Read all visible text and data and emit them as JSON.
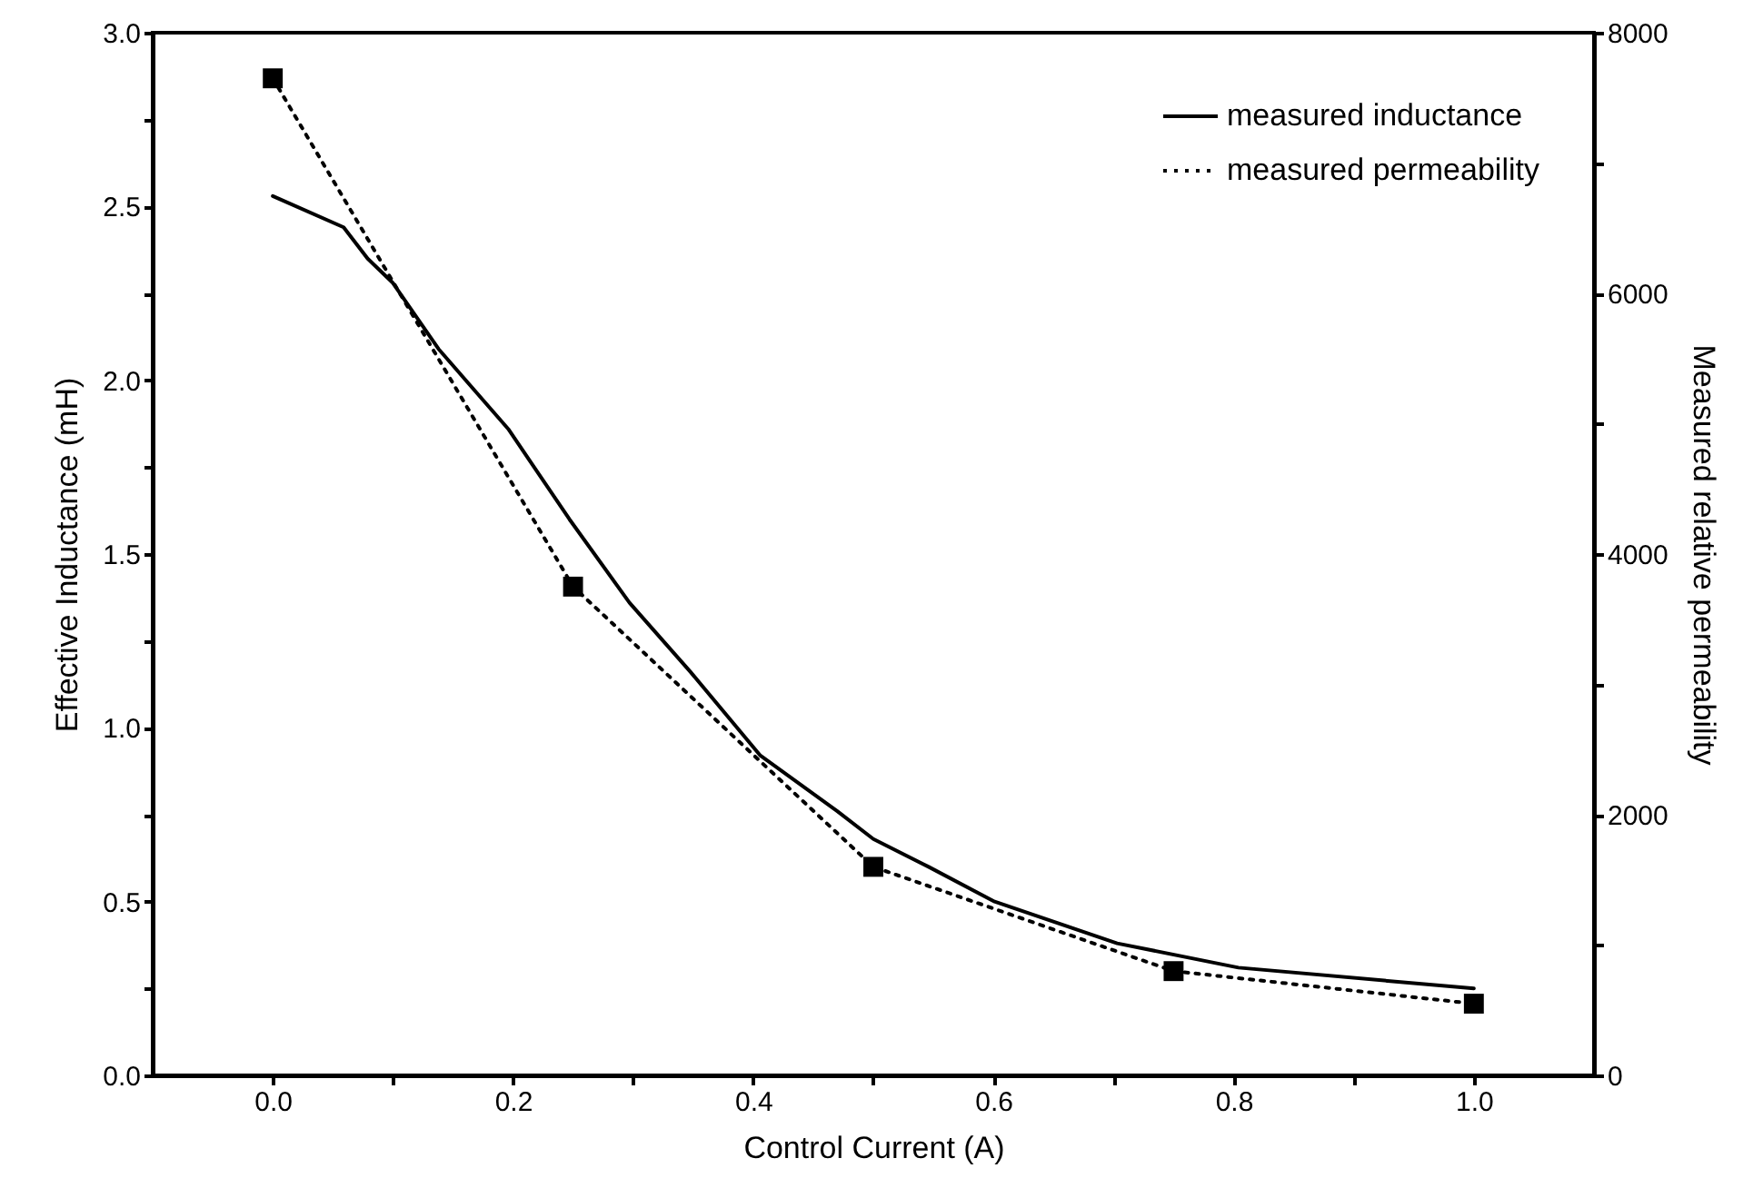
{
  "chart_data": {
    "type": "line",
    "xlabel": "Control Current (A)",
    "ylabel": "Effective Inductance (mH)",
    "y2label": "Measured relative permeability",
    "xlim": [
      -0.1,
      1.1
    ],
    "xticks": [
      {
        "value": 0,
        "label": "0.0"
      },
      {
        "value": 0.1,
        "label": null
      },
      0.2,
      {
        "value": 0.3,
        "label": null
      },
      0.4,
      {
        "value": 0.5,
        "label": null
      },
      0.6,
      {
        "value": 0.7,
        "label": null
      },
      0.8,
      {
        "value": 0.9,
        "label": null
      },
      {
        "value": 1,
        "label": "1.0"
      }
    ],
    "ylim": [
      0,
      3
    ],
    "yticks": [
      {
        "value": 0,
        "label": "0.0"
      },
      {
        "value": 0.25,
        "label": null
      },
      0.5,
      {
        "value": 0.75,
        "label": null
      },
      {
        "value": 1,
        "label": "1.0"
      },
      {
        "value": 1.25,
        "label": null
      },
      1.5,
      {
        "value": 1.75,
        "label": null
      },
      {
        "value": 2,
        "label": "2.0"
      },
      {
        "value": 2.25,
        "label": null
      },
      2.5,
      {
        "value": 2.75,
        "label": null
      },
      {
        "value": 3,
        "label": "3.0"
      }
    ],
    "y2lim": [
      0,
      8000
    ],
    "y2ticks": [
      0,
      {
        "value": 1000,
        "label": null
      },
      2000,
      {
        "value": 3000,
        "label": null
      },
      4000,
      {
        "value": 5000,
        "label": null
      },
      6000,
      {
        "value": 7000,
        "label": null
      },
      8000
    ],
    "legend": "top right",
    "series": [
      {
        "name": "measured inductance",
        "color": "#000000",
        "line_style": "solid",
        "marker": "none",
        "axis": "y",
        "x": [
          0,
          0.059,
          0.079,
          0.1,
          0.138,
          0.196,
          0.247,
          0.297,
          0.348,
          0.406,
          0.47,
          0.5,
          0.546,
          0.601,
          0.703,
          0.804,
          1.0
        ],
        "values": [
          2.53,
          2.44,
          2.35,
          2.28,
          2.09,
          1.86,
          1.6,
          1.36,
          1.16,
          0.92,
          0.76,
          0.68,
          0.6,
          0.5,
          0.38,
          0.31,
          0.25
        ]
      },
      {
        "name": "measured permeability",
        "color": "#000000",
        "line_style": "dotted",
        "marker": "square",
        "axis": "y2",
        "x": [
          0,
          0.25,
          0.5,
          0.75,
          1.0
        ],
        "values": [
          7650,
          3750,
          1600,
          800,
          550
        ]
      }
    ]
  }
}
